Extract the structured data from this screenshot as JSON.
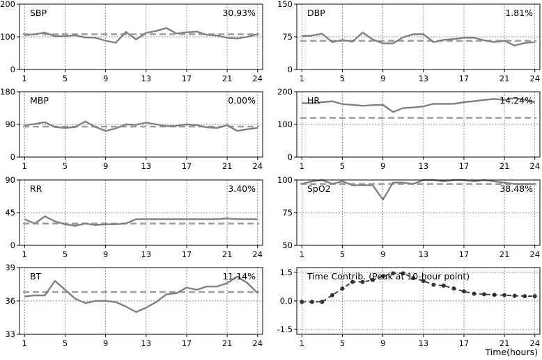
{
  "figure": {
    "xlabel": "Time(hours)"
  },
  "colors": {
    "line": "#808080",
    "dashed": "#a0a0a0",
    "contrib": "#333333",
    "grid": "#666666",
    "frame": "#000000"
  },
  "chart_data": [
    {
      "id": "sbp",
      "type": "line",
      "label": "SBP",
      "percent": "30.93%",
      "x": [
        1,
        2,
        3,
        4,
        5,
        6,
        7,
        8,
        9,
        10,
        11,
        12,
        13,
        14,
        15,
        16,
        17,
        18,
        19,
        20,
        21,
        22,
        23,
        24
      ],
      "xticks": [
        1,
        5,
        9,
        13,
        17,
        21,
        24
      ],
      "ylim": [
        0,
        200
      ],
      "yticks": [
        0,
        100,
        200
      ],
      "values": [
        105,
        108,
        113,
        102,
        102,
        105,
        98,
        97,
        88,
        82,
        115,
        92,
        112,
        118,
        127,
        110,
        114,
        116,
        106,
        104,
        97,
        95,
        100,
        108
      ],
      "reference": 108
    },
    {
      "id": "dbp",
      "type": "line",
      "label": "DBP",
      "percent": "1.81%",
      "x": [
        1,
        2,
        3,
        4,
        5,
        6,
        7,
        8,
        9,
        10,
        11,
        12,
        13,
        14,
        15,
        16,
        17,
        18,
        19,
        20,
        21,
        22,
        23,
        24
      ],
      "xticks": [
        1,
        5,
        9,
        13,
        17,
        21,
        24
      ],
      "ylim": [
        0,
        150
      ],
      "yticks": [
        0,
        75,
        150
      ],
      "values": [
        77,
        78,
        82,
        63,
        68,
        64,
        85,
        69,
        60,
        60,
        74,
        81,
        81,
        63,
        68,
        70,
        73,
        73,
        67,
        63,
        66,
        55,
        61,
        63
      ],
      "reference": 66
    },
    {
      "id": "mbp",
      "type": "line",
      "label": "MBP",
      "percent": "0.00%",
      "x": [
        1,
        2,
        3,
        4,
        5,
        6,
        7,
        8,
        9,
        10,
        11,
        12,
        13,
        14,
        15,
        16,
        17,
        18,
        19,
        20,
        21,
        22,
        23,
        24
      ],
      "xticks": [
        1,
        5,
        9,
        13,
        17,
        21,
        24
      ],
      "ylim": [
        0,
        180
      ],
      "yticks": [
        0,
        90,
        180
      ],
      "values": [
        88,
        91,
        96,
        83,
        80,
        83,
        98,
        83,
        72,
        79,
        90,
        89,
        95,
        90,
        85,
        86,
        90,
        88,
        82,
        80,
        88,
        72,
        77,
        80
      ],
      "reference": 84
    },
    {
      "id": "hr",
      "type": "line",
      "label": "HR",
      "percent": "14.24%",
      "x": [
        1,
        2,
        3,
        4,
        5,
        6,
        7,
        8,
        9,
        10,
        11,
        12,
        13,
        14,
        15,
        16,
        17,
        18,
        19,
        20,
        21,
        22,
        23,
        24
      ],
      "xticks": [
        1,
        5,
        9,
        13,
        17,
        21,
        24
      ],
      "ylim": [
        0,
        200
      ],
      "yticks": [
        0,
        100,
        200
      ],
      "values": [
        165,
        165,
        168,
        171,
        162,
        160,
        157,
        159,
        160,
        138,
        150,
        152,
        155,
        163,
        163,
        163,
        168,
        171,
        175,
        178,
        175,
        181,
        175,
        168
      ],
      "reference": 120
    },
    {
      "id": "rr",
      "type": "line",
      "label": "RR",
      "percent": "3.40%",
      "x": [
        1,
        2,
        3,
        4,
        5,
        6,
        7,
        8,
        9,
        10,
        11,
        12,
        13,
        14,
        15,
        16,
        17,
        18,
        19,
        20,
        21,
        22,
        23,
        24
      ],
      "xticks": [
        1,
        5,
        9,
        13,
        17,
        21,
        24
      ],
      "ylim": [
        0,
        90
      ],
      "yticks": [
        0,
        45,
        90
      ],
      "values": [
        36,
        30,
        40,
        33,
        29,
        27,
        30,
        28,
        29,
        29,
        30,
        36,
        36,
        36,
        36,
        36,
        36,
        36,
        36,
        36,
        37,
        36,
        36,
        36
      ],
      "reference": 30
    },
    {
      "id": "spo2",
      "type": "line",
      "label": "SpO2",
      "percent": "38.48%",
      "x": [
        1,
        2,
        3,
        4,
        5,
        6,
        7,
        8,
        9,
        10,
        11,
        12,
        13,
        14,
        15,
        16,
        17,
        18,
        19,
        20,
        21,
        22,
        23,
        24
      ],
      "xticks": [
        1,
        5,
        9,
        13,
        17,
        21,
        24
      ],
      "ylim": [
        50,
        100
      ],
      "yticks": [
        50,
        75,
        100
      ],
      "values": [
        97,
        99,
        100,
        97,
        99,
        96,
        96,
        96,
        85,
        98,
        98,
        97,
        100,
        100,
        99,
        100,
        100,
        99,
        100,
        99,
        98,
        97,
        97,
        97
      ],
      "reference": 97
    },
    {
      "id": "bt",
      "type": "line",
      "label": "BT",
      "percent": "11.14%",
      "x": [
        1,
        2,
        3,
        4,
        5,
        6,
        7,
        8,
        9,
        10,
        11,
        12,
        13,
        14,
        15,
        16,
        17,
        18,
        19,
        20,
        21,
        22,
        23,
        24
      ],
      "xticks": [
        1,
        5,
        9,
        13,
        17,
        21,
        24
      ],
      "ylim": [
        33,
        39
      ],
      "yticks": [
        33,
        36,
        39
      ],
      "values": [
        36.4,
        36.5,
        36.5,
        37.8,
        37.0,
        36.2,
        35.8,
        36.0,
        36.0,
        35.9,
        35.5,
        35.0,
        35.4,
        35.9,
        36.6,
        36.7,
        37.2,
        37.0,
        37.3,
        37.3,
        37.6,
        38.2,
        37.6,
        36.7
      ],
      "reference": 36.8
    },
    {
      "id": "contrib",
      "type": "line",
      "label": "Time Contrib. (Peak at 10-hour point)",
      "percent": "",
      "x": [
        1,
        2,
        3,
        4,
        5,
        6,
        7,
        8,
        9,
        10,
        11,
        12,
        13,
        14,
        15,
        16,
        17,
        18,
        19,
        20,
        21,
        22,
        23,
        24
      ],
      "xticks": [
        1,
        5,
        9,
        13,
        17,
        21,
        24
      ],
      "ylim": [
        -1.75,
        1.75
      ],
      "yticks": [
        -1.5,
        0.0,
        1.5
      ],
      "ytick_labels": [
        "-1.5",
        "0.0",
        "1.5"
      ],
      "values": [
        -0.05,
        -0.05,
        -0.05,
        0.3,
        0.65,
        1.0,
        1.0,
        1.1,
        1.3,
        1.45,
        1.45,
        1.2,
        1.05,
        0.85,
        0.8,
        0.65,
        0.5,
        0.38,
        0.35,
        0.32,
        0.3,
        0.27,
        0.25,
        0.25
      ],
      "reference": null
    }
  ]
}
